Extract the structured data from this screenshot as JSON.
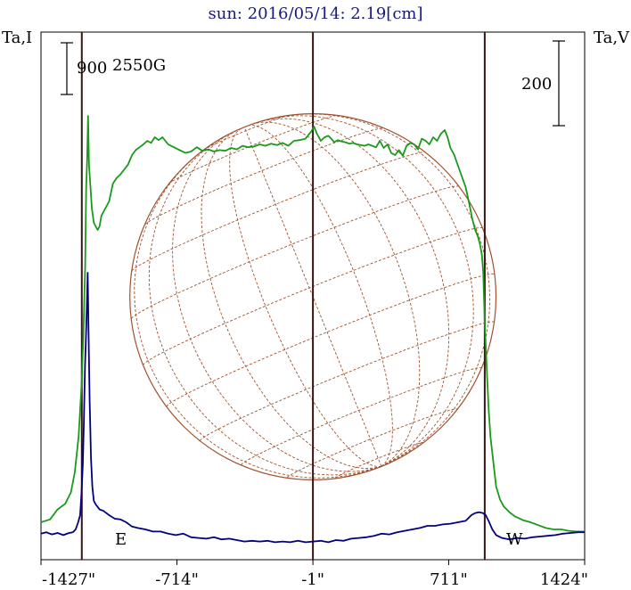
{
  "title": "sun: 2016/05/14: 2.19[cm]",
  "left_axis_label": "Ta,I",
  "right_axis_label": "Ta,V",
  "scale_left": "900",
  "scale_right": "200",
  "peak_label": "2550G",
  "east_label": "E",
  "west_label": "W",
  "colors": {
    "title": "#1a1a7a",
    "intensity": "#1a9a1a",
    "polarization": "#000080",
    "grid": "#a0522d",
    "marker": "#3b1414",
    "frame": "#000000"
  },
  "chart_data": {
    "type": "line",
    "title": "sun: 2016/05/14: 2.19[cm]",
    "xlabel": "",
    "x_ticks": [
      {
        "value": -1427,
        "label": "-1427\""
      },
      {
        "value": -714,
        "label": "-714\""
      },
      {
        "value": -1,
        "label": "-1\""
      },
      {
        "value": 711,
        "label": "711\""
      },
      {
        "value": 1424,
        "label": "1424\""
      }
    ],
    "xlim": [
      -1427,
      1424
    ],
    "vertical_markers": [
      -1213,
      -1,
      900
    ],
    "solar_disk": {
      "center_x": -1,
      "radius_arcsec": 960
    },
    "series": [
      {
        "name": "Ta,I",
        "color": "#1a9a1a",
        "points": [
          [
            -1427,
            30
          ],
          [
            -1380,
            34
          ],
          [
            -1340,
            48
          ],
          [
            -1300,
            56
          ],
          [
            -1270,
            72
          ],
          [
            -1250,
            100
          ],
          [
            -1230,
            150
          ],
          [
            -1215,
            220
          ],
          [
            -1205,
            290
          ],
          [
            -1195,
            390
          ],
          [
            -1190,
            500
          ],
          [
            -1185,
            540
          ],
          [
            -1180,
            600
          ],
          [
            -1175,
            530
          ],
          [
            -1170,
            510
          ],
          [
            -1160,
            470
          ],
          [
            -1150,
            450
          ],
          [
            -1140,
            445
          ],
          [
            -1130,
            440
          ],
          [
            -1120,
            445
          ],
          [
            -1110,
            460
          ],
          [
            -1090,
            470
          ],
          [
            -1070,
            480
          ],
          [
            -1050,
            505
          ],
          [
            -1030,
            513
          ],
          [
            -1010,
            518
          ],
          [
            -990,
            525
          ],
          [
            -970,
            532
          ],
          [
            -950,
            545
          ],
          [
            -930,
            552
          ],
          [
            -910,
            556
          ],
          [
            -890,
            560
          ],
          [
            -870,
            565
          ],
          [
            -850,
            562
          ],
          [
            -830,
            570
          ],
          [
            -810,
            566
          ],
          [
            -790,
            570
          ],
          [
            -760,
            560
          ],
          [
            -730,
            556
          ],
          [
            -700,
            552
          ],
          [
            -670,
            548
          ],
          [
            -640,
            550
          ],
          [
            -610,
            556
          ],
          [
            -580,
            551
          ],
          [
            -550,
            553
          ],
          [
            -520,
            550
          ],
          [
            -490,
            552
          ],
          [
            -460,
            551
          ],
          [
            -430,
            555
          ],
          [
            -400,
            553
          ],
          [
            -370,
            558
          ],
          [
            -340,
            556
          ],
          [
            -310,
            557
          ],
          [
            -280,
            560
          ],
          [
            -250,
            558
          ],
          [
            -220,
            561
          ],
          [
            -190,
            559
          ],
          [
            -160,
            562
          ],
          [
            -130,
            558
          ],
          [
            -100,
            565
          ],
          [
            -70,
            566
          ],
          [
            -40,
            568
          ],
          [
            -10,
            578
          ],
          [
            5,
            585
          ],
          [
            20,
            575
          ],
          [
            40,
            565
          ],
          [
            60,
            570
          ],
          [
            80,
            572
          ],
          [
            95,
            568
          ],
          [
            110,
            563
          ],
          [
            130,
            566
          ],
          [
            150,
            564
          ],
          [
            170,
            563
          ],
          [
            190,
            561
          ],
          [
            210,
            562
          ],
          [
            230,
            560
          ],
          [
            250,
            559
          ],
          [
            270,
            558
          ],
          [
            290,
            560
          ],
          [
            310,
            558
          ],
          [
            330,
            556
          ],
          [
            350,
            565
          ],
          [
            370,
            555
          ],
          [
            390,
            560
          ],
          [
            410,
            548
          ],
          [
            430,
            545
          ],
          [
            450,
            552
          ],
          [
            470,
            544
          ],
          [
            490,
            558
          ],
          [
            510,
            562
          ],
          [
            530,
            560
          ],
          [
            550,
            553
          ],
          [
            570,
            568
          ],
          [
            590,
            565
          ],
          [
            610,
            560
          ],
          [
            630,
            570
          ],
          [
            650,
            565
          ],
          [
            670,
            575
          ],
          [
            690,
            580
          ],
          [
            705,
            570
          ],
          [
            720,
            555
          ],
          [
            740,
            545
          ],
          [
            760,
            530
          ],
          [
            780,
            515
          ],
          [
            800,
            500
          ],
          [
            820,
            475
          ],
          [
            835,
            455
          ],
          [
            850,
            440
          ],
          [
            865,
            430
          ],
          [
            875,
            420
          ],
          [
            885,
            405
          ],
          [
            892,
            380
          ],
          [
            900,
            310
          ],
          [
            910,
            250
          ],
          [
            920,
            190
          ],
          [
            930,
            150
          ],
          [
            945,
            115
          ],
          [
            960,
            80
          ],
          [
            980,
            62
          ],
          [
            1000,
            52
          ],
          [
            1030,
            44
          ],
          [
            1060,
            38
          ],
          [
            1100,
            33
          ],
          [
            1140,
            30
          ],
          [
            1180,
            26
          ],
          [
            1220,
            22
          ],
          [
            1260,
            20
          ],
          [
            1300,
            20
          ],
          [
            1340,
            18
          ],
          [
            1380,
            17
          ],
          [
            1424,
            17
          ]
        ]
      },
      {
        "name": "Ta,V",
        "color": "#000080",
        "points": [
          [
            -1427,
            14
          ],
          [
            -1400,
            16
          ],
          [
            -1370,
            13
          ],
          [
            -1340,
            15
          ],
          [
            -1310,
            12
          ],
          [
            -1280,
            15
          ],
          [
            -1260,
            16
          ],
          [
            -1245,
            20
          ],
          [
            -1232,
            30
          ],
          [
            -1222,
            40
          ],
          [
            -1215,
            70
          ],
          [
            -1208,
            110
          ],
          [
            -1202,
            170
          ],
          [
            -1196,
            250
          ],
          [
            -1190,
            300
          ],
          [
            -1185,
            350
          ],
          [
            -1182,
            380
          ],
          [
            -1178,
            300
          ],
          [
            -1172,
            200
          ],
          [
            -1165,
            120
          ],
          [
            -1158,
            80
          ],
          [
            -1150,
            60
          ],
          [
            -1140,
            55
          ],
          [
            -1120,
            48
          ],
          [
            -1100,
            46
          ],
          [
            -1070,
            40
          ],
          [
            -1040,
            35
          ],
          [
            -1010,
            34
          ],
          [
            -980,
            30
          ],
          [
            -950,
            24
          ],
          [
            -920,
            22
          ],
          [
            -880,
            20
          ],
          [
            -840,
            17
          ],
          [
            -800,
            17
          ],
          [
            -760,
            14
          ],
          [
            -720,
            12
          ],
          [
            -680,
            14
          ],
          [
            -640,
            9
          ],
          [
            -600,
            8
          ],
          [
            -560,
            7
          ],
          [
            -520,
            9
          ],
          [
            -480,
            6
          ],
          [
            -440,
            7
          ],
          [
            -400,
            5
          ],
          [
            -360,
            3
          ],
          [
            -320,
            4
          ],
          [
            -280,
            3
          ],
          [
            -240,
            4
          ],
          [
            -200,
            2
          ],
          [
            -160,
            3
          ],
          [
            -120,
            2
          ],
          [
            -80,
            4
          ],
          [
            -40,
            2
          ],
          [
            0,
            3
          ],
          [
            40,
            4
          ],
          [
            80,
            2
          ],
          [
            120,
            5
          ],
          [
            160,
            4
          ],
          [
            200,
            7
          ],
          [
            240,
            8
          ],
          [
            280,
            9
          ],
          [
            320,
            11
          ],
          [
            360,
            14
          ],
          [
            400,
            13
          ],
          [
            440,
            16
          ],
          [
            480,
            18
          ],
          [
            520,
            20
          ],
          [
            560,
            22
          ],
          [
            600,
            25
          ],
          [
            640,
            25
          ],
          [
            680,
            27
          ],
          [
            720,
            28
          ],
          [
            760,
            30
          ],
          [
            800,
            32
          ],
          [
            830,
            40
          ],
          [
            850,
            43
          ],
          [
            870,
            44
          ],
          [
            890,
            43
          ],
          [
            905,
            40
          ],
          [
            920,
            32
          ],
          [
            940,
            20
          ],
          [
            960,
            12
          ],
          [
            990,
            8
          ],
          [
            1030,
            6
          ],
          [
            1070,
            8
          ],
          [
            1110,
            7
          ],
          [
            1150,
            9
          ],
          [
            1190,
            10
          ],
          [
            1230,
            11
          ],
          [
            1270,
            12
          ],
          [
            1310,
            14
          ],
          [
            1350,
            15
          ],
          [
            1390,
            16
          ],
          [
            1424,
            16
          ]
        ]
      }
    ]
  }
}
